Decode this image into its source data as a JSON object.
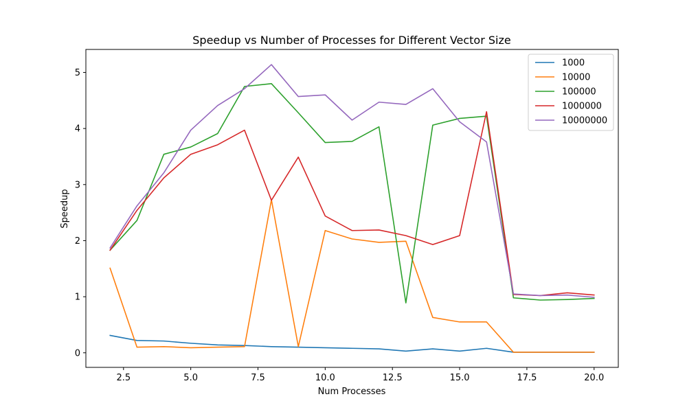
{
  "chart_data": {
    "type": "line",
    "title": "Speedup vs Number of Processes for Different Vector Size",
    "xlabel": "Num Processes",
    "ylabel": "Speedup",
    "xlim": [
      1.1,
      20.9
    ],
    "ylim": [
      -0.26,
      5.41
    ],
    "xticks": [
      2.5,
      5.0,
      7.5,
      10.0,
      12.5,
      15.0,
      17.5,
      20.0
    ],
    "yticks": [
      0,
      1,
      2,
      3,
      4,
      5
    ],
    "grid": false,
    "legend_position": "top-right",
    "x": [
      2,
      3,
      4,
      5,
      6,
      7,
      8,
      9,
      10,
      11,
      12,
      13,
      14,
      15,
      16,
      17,
      18,
      19,
      20
    ],
    "series": [
      {
        "name": "1000",
        "color": "#1f77b4",
        "values": [
          0.31,
          0.22,
          0.21,
          0.17,
          0.14,
          0.13,
          0.11,
          0.1,
          0.09,
          0.08,
          0.07,
          0.03,
          0.07,
          0.03,
          0.08,
          0.01,
          0.01,
          0.01,
          0.01
        ]
      },
      {
        "name": "10000",
        "color": "#ff7f0e",
        "values": [
          1.51,
          0.1,
          0.11,
          0.09,
          0.1,
          0.11,
          2.73,
          0.11,
          2.18,
          2.03,
          1.97,
          1.99,
          0.63,
          0.55,
          0.55,
          0.01,
          0.01,
          0.01,
          0.01
        ]
      },
      {
        "name": "100000",
        "color": "#2ca02c",
        "values": [
          1.83,
          2.36,
          3.54,
          3.67,
          3.91,
          4.75,
          4.8,
          4.28,
          3.75,
          3.77,
          4.03,
          0.89,
          4.06,
          4.18,
          4.22,
          0.98,
          0.94,
          0.95,
          0.97
        ]
      },
      {
        "name": "1000000",
        "color": "#d62728",
        "values": [
          1.83,
          2.54,
          3.12,
          3.54,
          3.71,
          3.97,
          2.72,
          3.49,
          2.44,
          2.18,
          2.19,
          2.09,
          1.93,
          2.09,
          4.3,
          1.04,
          1.02,
          1.07,
          1.03
        ]
      },
      {
        "name": "10000000",
        "color": "#9467bd",
        "values": [
          1.87,
          2.62,
          3.21,
          3.97,
          4.41,
          4.71,
          5.14,
          4.57,
          4.6,
          4.15,
          4.47,
          4.43,
          4.71,
          4.12,
          3.76,
          1.05,
          1.02,
          1.03,
          0.99
        ]
      }
    ]
  }
}
